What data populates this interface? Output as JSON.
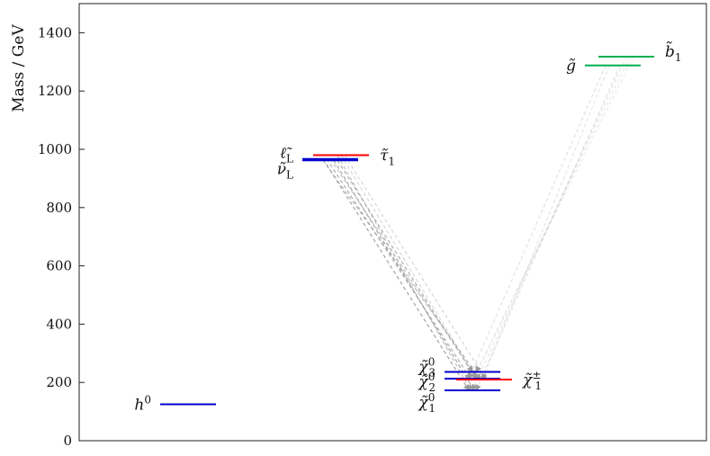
{
  "chart_data": {
    "type": "mass-spectrum",
    "title": "",
    "xlabel": "",
    "ylabel": "Mass / GeV",
    "ylim": [
      0,
      1500
    ],
    "yticks": [
      0,
      200,
      400,
      600,
      800,
      1000,
      1200,
      1400
    ],
    "grid": false,
    "legend": "none",
    "colors": {
      "higgs": "#0000cc",
      "slepton": "#0000cc",
      "stau": "#ff0000",
      "neutralino": "#0000cc",
      "chargino": "#ff0000",
      "gluino": "#00b050",
      "sbottom": "#00b050",
      "decay": "#9a9a9a"
    },
    "levels": [
      {
        "id": "h0",
        "column": 0,
        "mass": 125,
        "color": "higgs",
        "label": "h",
        "sup": "0",
        "sub": "",
        "side": "left"
      },
      {
        "id": "lL",
        "column": 1,
        "mass": 967,
        "color": "slepton",
        "label": "ℓ̃",
        "sup": "",
        "sub": "L",
        "side": "left"
      },
      {
        "id": "nuL",
        "column": 1,
        "mass": 962,
        "color": "slepton",
        "label": "ν̃",
        "sup": "",
        "sub": "L",
        "side": "left"
      },
      {
        "id": "stau1",
        "column": 1,
        "mass": 980,
        "color": "stau",
        "label": "τ̃",
        "sup": "",
        "sub": "1",
        "side": "right"
      },
      {
        "id": "chi30",
        "column": 2,
        "mass": 236,
        "color": "neutralino",
        "label": "χ̃",
        "sup": "0",
        "sub": "3",
        "side": "left"
      },
      {
        "id": "chi20",
        "column": 2,
        "mass": 213,
        "color": "neutralino",
        "label": "χ̃",
        "sup": "0",
        "sub": "2",
        "side": "left"
      },
      {
        "id": "chi10",
        "column": 2,
        "mass": 173,
        "color": "neutralino",
        "label": "χ̃",
        "sup": "0",
        "sub": "1",
        "side": "left"
      },
      {
        "id": "chi1pm",
        "column": 2,
        "mass": 210,
        "color": "chargino",
        "label": "χ̃",
        "sup": "±",
        "sub": "1",
        "side": "right"
      },
      {
        "id": "gluino",
        "column": 3,
        "mass": 1288,
        "color": "gluino",
        "label": "g̃",
        "sup": "",
        "sub": "",
        "side": "left"
      },
      {
        "id": "sbottom1",
        "column": 3,
        "mass": 1318,
        "color": "sbottom",
        "label": "b̃",
        "sup": "",
        "sub": "1",
        "side": "right"
      }
    ],
    "decays": [
      {
        "from": "lL",
        "to": "chi10",
        "strength": 0.9
      },
      {
        "from": "lL",
        "to": "chi20",
        "strength": 0.8
      },
      {
        "from": "lL",
        "to": "chi30",
        "strength": 0.6
      },
      {
        "from": "nuL",
        "to": "chi10",
        "strength": 0.9
      },
      {
        "from": "nuL",
        "to": "chi20",
        "strength": 0.8
      },
      {
        "from": "nuL",
        "to": "chi1pm",
        "strength": 0.7
      },
      {
        "from": "stau1",
        "to": "chi10",
        "strength": 0.6
      },
      {
        "from": "stau1",
        "to": "chi30",
        "strength": 0.4
      },
      {
        "from": "stau1",
        "to": "chi1pm",
        "strength": 0.4
      },
      {
        "from": "gluino",
        "to": "chi10",
        "strength": 0.3
      },
      {
        "from": "gluino",
        "to": "chi20",
        "strength": 0.3
      },
      {
        "from": "gluino",
        "to": "chi1pm",
        "strength": 0.25
      },
      {
        "from": "sbottom1",
        "to": "chi10",
        "strength": 0.25
      },
      {
        "from": "sbottom1",
        "to": "chi20",
        "strength": 0.2
      },
      {
        "from": "sbottom1",
        "to": "chi30",
        "strength": 0.2
      }
    ]
  }
}
